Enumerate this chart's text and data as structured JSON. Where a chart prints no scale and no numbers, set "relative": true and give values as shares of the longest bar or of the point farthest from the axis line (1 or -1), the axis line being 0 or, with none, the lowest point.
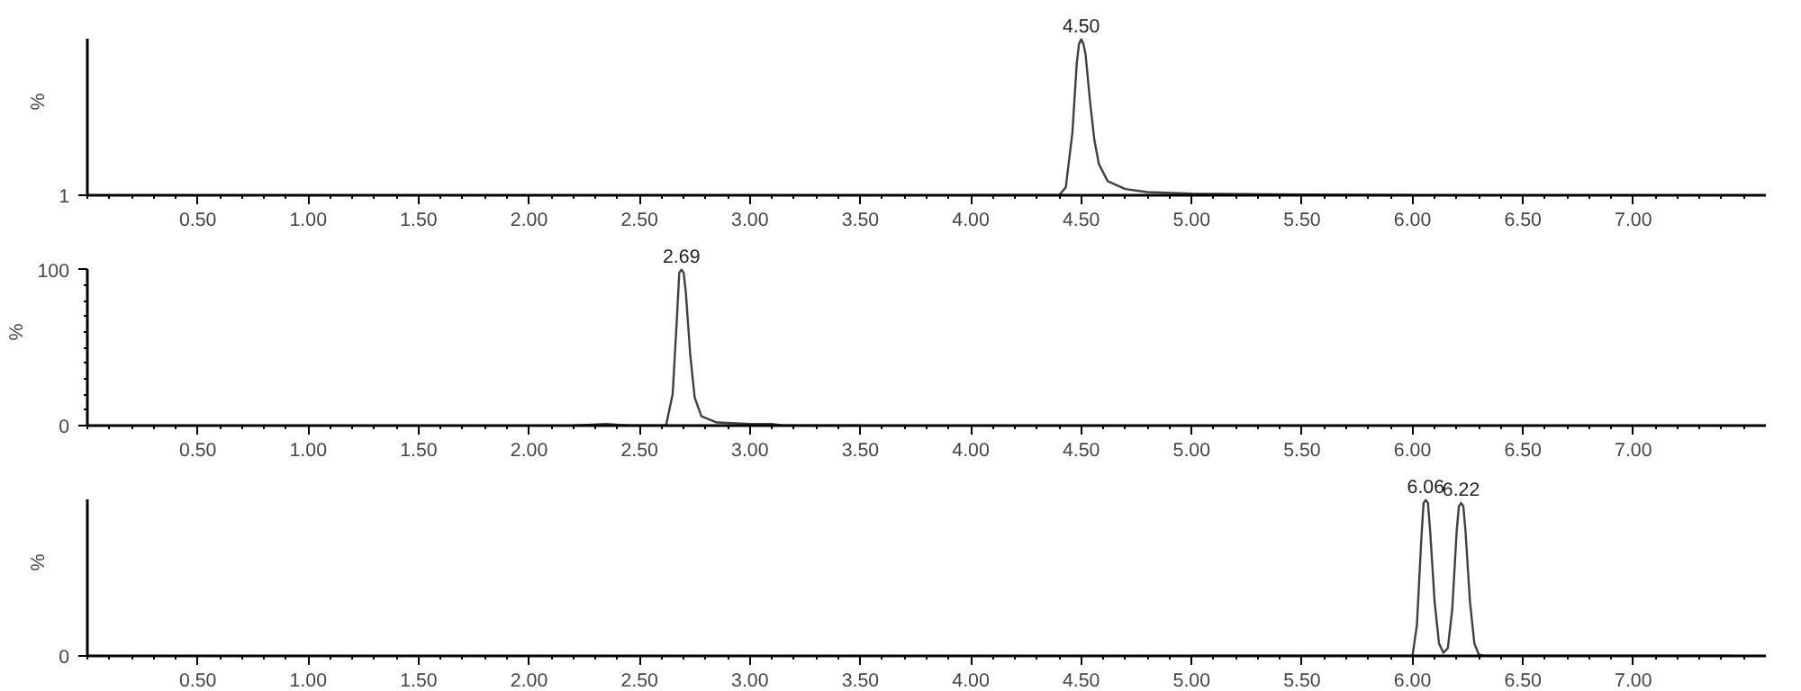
{
  "chart_data": [
    {
      "type": "line",
      "relative": true,
      "ylabel": "%",
      "xlim": [
        0,
        7.6
      ],
      "xticks": [
        {
          "value": 0.5,
          "label": "0.50"
        },
        {
          "value": 1.0,
          "label": "1.00"
        },
        {
          "value": 1.5,
          "label": "1.50"
        },
        {
          "value": 2.0,
          "label": "2.00"
        },
        {
          "value": 2.5,
          "label": "2.50"
        },
        {
          "value": 3.0,
          "label": "3.00"
        },
        {
          "value": 3.5,
          "label": "3.50"
        },
        {
          "value": 4.0,
          "label": "4.00"
        },
        {
          "value": 4.5,
          "label": "4.50"
        },
        {
          "value": 5.0,
          "label": "5.00"
        },
        {
          "value": 5.5,
          "label": "5.50"
        },
        {
          "value": 6.0,
          "label": "6.00"
        },
        {
          "value": 6.5,
          "label": "6.50"
        },
        {
          "value": 7.0,
          "label": "7.00"
        }
      ],
      "series": [
        {
          "color": "#404040",
          "x": [
            4.0,
            4.4,
            4.43,
            4.46,
            4.48,
            4.49,
            4.5,
            4.51,
            4.52,
            4.54,
            4.56,
            4.58,
            4.62,
            4.7,
            4.8,
            5.0,
            5.5,
            6.0
          ],
          "values": [
            0,
            0,
            0.05,
            0.4,
            0.85,
            0.97,
            1.0,
            0.97,
            0.9,
            0.6,
            0.35,
            0.2,
            0.09,
            0.04,
            0.02,
            0.01,
            0.005,
            0
          ]
        }
      ],
      "annotations": [
        "1",
        {
          "text": "4.50",
          "x": 4.5,
          "y": 1.0
        }
      ]
    },
    {
      "type": "line",
      "ylabel": "%",
      "xlim": [
        0,
        7.6
      ],
      "ylim": [
        0,
        100
      ],
      "xticks": [
        {
          "value": 0.5,
          "label": "0.50"
        },
        {
          "value": 1.0,
          "label": "1.00"
        },
        {
          "value": 1.5,
          "label": "1.50"
        },
        {
          "value": 2.0,
          "label": "2.00"
        },
        {
          "value": 2.5,
          "label": "2.50"
        },
        {
          "value": 3.0,
          "label": "3.00"
        },
        {
          "value": 3.5,
          "label": "3.50"
        },
        {
          "value": 4.0,
          "label": "4.00"
        },
        {
          "value": 4.5,
          "label": "4.50"
        },
        {
          "value": 5.0,
          "label": "5.00"
        },
        {
          "value": 5.5,
          "label": "5.50"
        },
        {
          "value": 6.0,
          "label": "6.00"
        },
        {
          "value": 6.5,
          "label": "6.50"
        },
        {
          "value": 7.0,
          "label": "7.00"
        }
      ],
      "yticks": [
        0,
        100
      ],
      "series": [
        {
          "color": "#404040",
          "x": [
            2.2,
            2.35,
            2.45,
            2.62,
            2.65,
            2.67,
            2.68,
            2.69,
            2.7,
            2.71,
            2.73,
            2.75,
            2.78,
            2.85,
            3.0,
            3.1,
            3.15,
            3.5
          ],
          "values": [
            0,
            1,
            0,
            0,
            20,
            70,
            98,
            100,
            98,
            85,
            45,
            18,
            6,
            2,
            1,
            1,
            0,
            0
          ]
        }
      ],
      "annotations": [
        {
          "text": "2.69",
          "x": 2.69,
          "y": 100
        }
      ]
    },
    {
      "type": "line",
      "relative": true,
      "ylabel": "%",
      "xlim": [
        0,
        7.6
      ],
      "xticks": [
        {
          "value": 0.5,
          "label": "0.50"
        },
        {
          "value": 1.0,
          "label": "1.00"
        },
        {
          "value": 1.5,
          "label": "1.50"
        },
        {
          "value": 2.0,
          "label": "2.00"
        },
        {
          "value": 2.5,
          "label": "2.50"
        },
        {
          "value": 3.0,
          "label": "3.00"
        },
        {
          "value": 3.5,
          "label": "3.50"
        },
        {
          "value": 4.0,
          "label": "4.00"
        },
        {
          "value": 4.5,
          "label": "4.50"
        },
        {
          "value": 5.0,
          "label": "5.00"
        },
        {
          "value": 5.5,
          "label": "5.50"
        },
        {
          "value": 6.0,
          "label": "6.00"
        },
        {
          "value": 6.5,
          "label": "6.50"
        },
        {
          "value": 7.0,
          "label": "7.00"
        }
      ],
      "series": [
        {
          "color": "#404040",
          "x": [
            5.0,
            6.0,
            6.02,
            6.04,
            6.05,
            6.06,
            6.07,
            6.08,
            6.1,
            6.12,
            6.14,
            6.16,
            6.18,
            6.2,
            6.21,
            6.22,
            6.23,
            6.24,
            6.26,
            6.28,
            6.3,
            6.32,
            7.45
          ],
          "values": [
            0,
            0,
            0.2,
            0.75,
            0.98,
            1.0,
            0.98,
            0.8,
            0.35,
            0.08,
            0.02,
            0.05,
            0.3,
            0.8,
            0.96,
            0.98,
            0.96,
            0.8,
            0.35,
            0.08,
            0.01,
            0,
            0
          ]
        }
      ],
      "annotations": [
        "0",
        {
          "text": "6.06",
          "x": 6.06,
          "y": 1.0
        },
        {
          "text": "6.22",
          "x": 6.22,
          "y": 0.98
        }
      ]
    }
  ]
}
